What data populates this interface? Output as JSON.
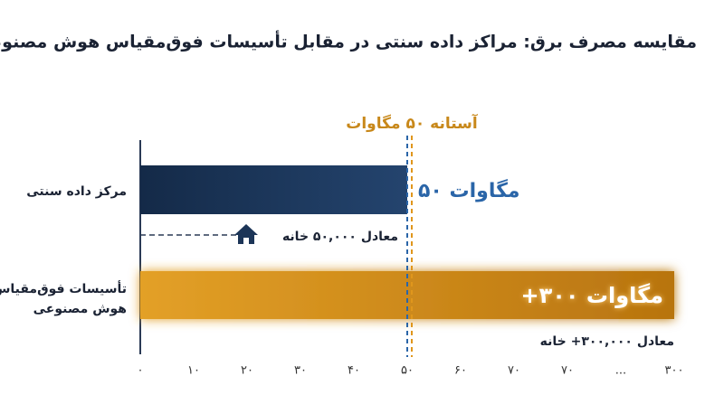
{
  "chart_data": {
    "type": "hbar",
    "title": "مقایسه مصرف برق: مراکز داده سنتی در مقابل تأسیسات فوق‌مقیاس هوش مصنوعی",
    "categories": [
      "مرکز داده سنتی",
      "تأسیسات فوق‌مقیاس هوش مصنوعی"
    ],
    "values": [
      50,
      300
    ],
    "value_labels": [
      "۵۰ مگاوات",
      "+۳۰۰ مگاوات"
    ],
    "colors": [
      "#1c3557",
      "#e0961c"
    ],
    "xlim": [
      0,
      300
    ],
    "xticks": [
      {
        "value": 0,
        "label": "۰"
      },
      {
        "value": 10,
        "label": "۱۰"
      },
      {
        "value": 20,
        "label": "۲۰"
      },
      {
        "value": 30,
        "label": "۳۰"
      },
      {
        "value": 40,
        "label": "۴۰"
      },
      {
        "value": 50,
        "label": "۵۰"
      },
      {
        "value": 60,
        "label": "۶۰"
      },
      {
        "value": 70,
        "label": "۷۰"
      },
      {
        "value": null,
        "label": "۷۰"
      },
      {
        "value": null,
        "label": "..."
      },
      {
        "value": 300,
        "label": "۳۰۰"
      }
    ],
    "threshold": {
      "value": 50,
      "label": "آستانه ۵۰ مگاوات"
    },
    "annotations": [
      "معادل ۵۰,۰۰۰ خانه",
      "معادل ۳۰۰,۰۰۰+ خانه"
    ]
  }
}
